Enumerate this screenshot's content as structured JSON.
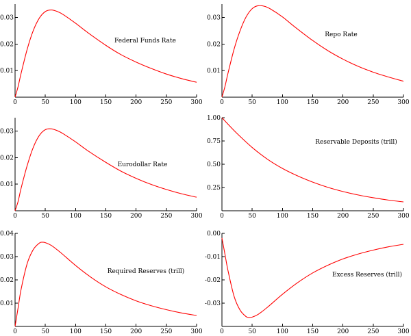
{
  "chart_data": [
    {
      "type": "line",
      "title": "",
      "xlabel": "",
      "ylabel": "",
      "label": "Federal Funds Rate",
      "legend_placement": "top-right",
      "grid": false,
      "xlim": [
        0,
        300
      ],
      "ylim": [
        0,
        0.035
      ],
      "x_ticks": [
        0,
        50,
        100,
        150,
        200,
        250,
        300
      ],
      "x_tick_labels": [
        "0",
        "50",
        "100",
        "150",
        "200",
        "250",
        "300"
      ],
      "y_ticks": [
        0.01,
        0.02,
        0.03
      ],
      "y_tick_labels": [
        "0.01",
        "0.02",
        "0.03"
      ],
      "series": [
        {
          "x": [
            0,
            5,
            10,
            20,
            30,
            40,
            50,
            60,
            70,
            80,
            100,
            120,
            150,
            175,
            200,
            225,
            250,
            275,
            300
          ],
          "values": [
            0,
            0.004,
            0.009,
            0.018,
            0.025,
            0.0297,
            0.0322,
            0.0328,
            0.0322,
            0.031,
            0.0278,
            0.0243,
            0.0195,
            0.016,
            0.0132,
            0.0108,
            0.0087,
            0.007,
            0.0056
          ]
        }
      ]
    },
    {
      "type": "line",
      "title": "",
      "xlabel": "",
      "ylabel": "",
      "label": "Repo Rate",
      "legend_placement": "top-right",
      "grid": false,
      "xlim": [
        0,
        300
      ],
      "ylim": [
        0,
        0.035
      ],
      "x_ticks": [
        0,
        50,
        100,
        150,
        200,
        250,
        300
      ],
      "x_tick_labels": [
        "0",
        "50",
        "100",
        "150",
        "200",
        "250",
        "300"
      ],
      "y_ticks": [
        0.01,
        0.02,
        0.03
      ],
      "y_tick_labels": [
        "0.01",
        "0.02",
        "0.03"
      ],
      "series": [
        {
          "x": [
            0,
            5,
            10,
            20,
            30,
            40,
            50,
            60,
            70,
            80,
            100,
            120,
            150,
            175,
            200,
            225,
            250,
            275,
            300
          ],
          "values": [
            0,
            0.004,
            0.009,
            0.018,
            0.025,
            0.0302,
            0.0333,
            0.0344,
            0.0342,
            0.0332,
            0.0302,
            0.0265,
            0.0213,
            0.0175,
            0.0143,
            0.0116,
            0.0094,
            0.0076,
            0.006
          ]
        }
      ]
    },
    {
      "type": "line",
      "title": "",
      "xlabel": "",
      "ylabel": "",
      "label": "Eurodollar Rate",
      "legend_placement": "center-right",
      "grid": false,
      "xlim": [
        0,
        300
      ],
      "ylim": [
        0,
        0.035
      ],
      "x_ticks": [
        0,
        50,
        100,
        150,
        200,
        250,
        300
      ],
      "x_tick_labels": [
        "0",
        "50",
        "100",
        "150",
        "200",
        "250",
        "300"
      ],
      "y_ticks": [
        0.01,
        0.02,
        0.03
      ],
      "y_tick_labels": [
        "0.01",
        "0.02",
        "0.03"
      ],
      "series": [
        {
          "x": [
            0,
            5,
            10,
            20,
            30,
            40,
            50,
            60,
            70,
            80,
            100,
            120,
            150,
            175,
            200,
            225,
            250,
            275,
            300
          ],
          "values": [
            0,
            0.0035,
            0.0085,
            0.017,
            0.0238,
            0.0283,
            0.0305,
            0.0308,
            0.0301,
            0.0289,
            0.0259,
            0.0226,
            0.0182,
            0.0149,
            0.0122,
            0.0099,
            0.008,
            0.0064,
            0.0051
          ]
        }
      ]
    },
    {
      "type": "line",
      "title": "",
      "xlabel": "",
      "ylabel": "",
      "label": "Reservable Deposits (trill)",
      "legend_placement": "top-right",
      "grid": false,
      "xlim": [
        0,
        300
      ],
      "ylim": [
        0,
        1.0
      ],
      "x_ticks": [
        0,
        50,
        100,
        150,
        200,
        250,
        300
      ],
      "x_tick_labels": [
        "0",
        "50",
        "100",
        "150",
        "200",
        "250",
        "300"
      ],
      "y_ticks": [
        0.25,
        0.5,
        0.75,
        1.0
      ],
      "y_tick_labels": [
        "0.25",
        "0.50",
        "0.75",
        "1.00"
      ],
      "series": [
        {
          "x": [
            0,
            10,
            25,
            50,
            75,
            100,
            125,
            150,
            175,
            200,
            225,
            250,
            275,
            300
          ],
          "values": [
            1.0,
            0.93,
            0.83,
            0.68,
            0.555,
            0.455,
            0.375,
            0.308,
            0.252,
            0.207,
            0.17,
            0.14,
            0.115,
            0.095
          ]
        }
      ]
    },
    {
      "type": "line",
      "title": "",
      "xlabel": "",
      "ylabel": "",
      "label": "Required Reserves (trill)",
      "legend_placement": "center-right",
      "grid": false,
      "xlim": [
        0,
        300
      ],
      "ylim": [
        0,
        0.04
      ],
      "x_ticks": [
        0,
        50,
        100,
        150,
        200,
        250,
        300
      ],
      "x_tick_labels": [
        "0",
        "50",
        "100",
        "150",
        "200",
        "250",
        "300"
      ],
      "y_ticks": [
        0.01,
        0.02,
        0.03,
        0.04
      ],
      "y_tick_labels": [
        "0.01",
        "0.02",
        "0.03",
        "0.04"
      ],
      "series": [
        {
          "x": [
            0,
            5,
            10,
            20,
            30,
            40,
            45,
            50,
            60,
            75,
            100,
            125,
            150,
            175,
            200,
            225,
            250,
            275,
            300
          ],
          "values": [
            0,
            0.008,
            0.016,
            0.027,
            0.033,
            0.0358,
            0.0362,
            0.036,
            0.0348,
            0.0318,
            0.0262,
            0.0212,
            0.017,
            0.0137,
            0.011,
            0.0089,
            0.0072,
            0.0058,
            0.0047
          ]
        }
      ]
    },
    {
      "type": "line",
      "title": "",
      "xlabel": "",
      "ylabel": "",
      "label": "Excess Reserves (trill)",
      "legend_placement": "center-right",
      "grid": false,
      "xlim": [
        0,
        300
      ],
      "ylim": [
        -0.04,
        0.0
      ],
      "x_ticks": [
        0,
        50,
        100,
        150,
        200,
        250,
        300
      ],
      "x_tick_labels": [
        "0",
        "50",
        "100",
        "150",
        "200",
        "250",
        "300"
      ],
      "y_ticks": [
        -0.03,
        -0.02,
        -0.01,
        0.0
      ],
      "y_tick_labels": [
        "-0.03",
        "-0.02",
        "-0.01",
        "0.00"
      ],
      "series": [
        {
          "x": [
            0,
            5,
            10,
            20,
            30,
            40,
            45,
            50,
            60,
            75,
            100,
            125,
            150,
            175,
            200,
            225,
            250,
            275,
            300
          ],
          "values": [
            -0.002,
            -0.009,
            -0.016,
            -0.027,
            -0.033,
            -0.0358,
            -0.0362,
            -0.036,
            -0.0348,
            -0.0318,
            -0.0262,
            -0.0212,
            -0.017,
            -0.0137,
            -0.011,
            -0.0089,
            -0.0072,
            -0.0058,
            -0.0047
          ]
        }
      ]
    }
  ]
}
